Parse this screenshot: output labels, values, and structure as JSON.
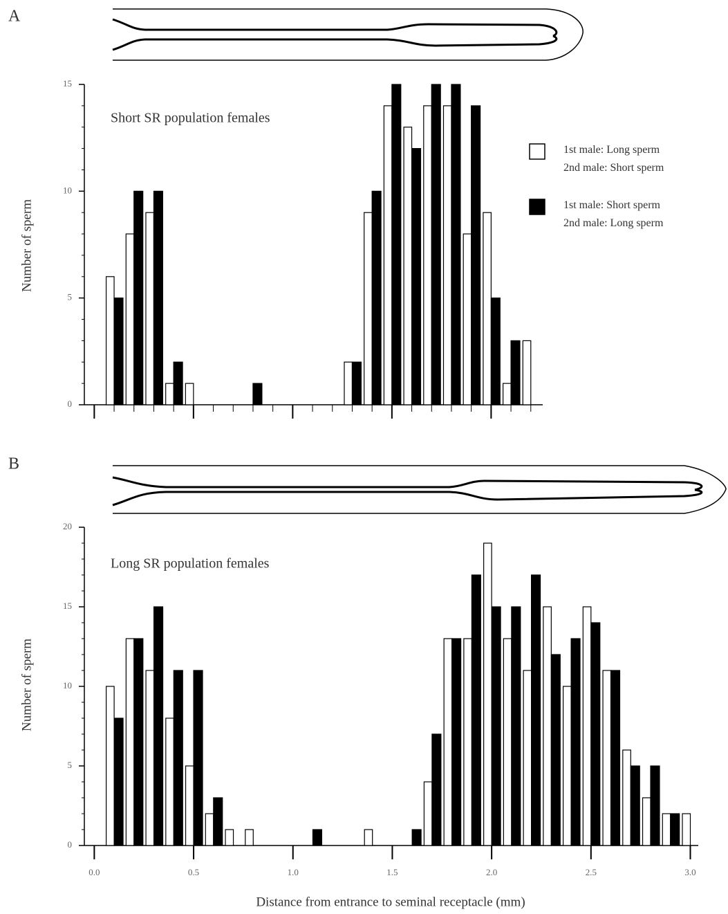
{
  "chart_data": [
    {
      "type": "bar",
      "panel": "A",
      "subtitle": "Short SR population females",
      "ylabel": "Number of sperm",
      "x": [
        0.1,
        0.2,
        0.3,
        0.4,
        0.5,
        0.6,
        0.7,
        0.8,
        0.9,
        1.0,
        1.1,
        1.2,
        1.3,
        1.4,
        1.5,
        1.6,
        1.7,
        1.8,
        1.9,
        2.0,
        2.1,
        2.2
      ],
      "series": [
        {
          "name": "1st male:  Long sperm\n2nd male: Short sperm",
          "color": "#ffffff",
          "values": [
            6,
            8,
            9,
            1,
            1,
            0,
            0,
            0,
            0,
            0,
            0,
            0,
            2,
            9,
            14,
            13,
            14,
            14,
            8,
            9,
            1,
            3
          ]
        },
        {
          "name": "1st male:  Short sperm\n2nd male: Long sperm",
          "color": "#000000",
          "values": [
            5,
            10,
            10,
            2,
            0,
            0,
            0,
            1,
            0,
            0,
            0,
            0,
            2,
            10,
            15,
            12,
            15,
            15,
            14,
            5,
            3,
            0
          ]
        }
      ],
      "xlim": [
        -0.05,
        2.26
      ],
      "xticks": [
        0,
        0.5,
        1.0,
        1.5,
        2.0
      ],
      "x_tick_labels": false,
      "x_minor_step": 0.1,
      "ylim": [
        0,
        15
      ],
      "yticks": [
        0,
        5,
        10,
        15
      ],
      "y_minor_step": 1,
      "legend": "upper right"
    },
    {
      "type": "bar",
      "panel": "B",
      "subtitle": "Long SR population females",
      "ylabel": "Number of sperm",
      "xlabel": "Distance from entrance to seminal receptacle (mm)",
      "x": [
        0.1,
        0.2,
        0.3,
        0.4,
        0.5,
        0.6,
        0.7,
        0.8,
        0.9,
        1.0,
        1.1,
        1.2,
        1.3,
        1.4,
        1.5,
        1.6,
        1.7,
        1.8,
        1.9,
        2.0,
        2.1,
        2.2,
        2.3,
        2.4,
        2.5,
        2.6,
        2.7,
        2.8,
        2.9,
        3.0
      ],
      "series": [
        {
          "color": "#ffffff",
          "values": [
            10,
            13,
            11,
            8,
            5,
            2,
            1,
            1,
            0,
            0,
            0,
            0,
            0,
            1,
            0,
            0,
            4,
            13,
            13,
            19,
            13,
            11,
            15,
            10,
            15,
            11,
            6,
            3,
            2,
            2
          ]
        },
        {
          "color": "#000000",
          "values": [
            8,
            13,
            15,
            11,
            11,
            3,
            0,
            0,
            0,
            0,
            1,
            0,
            0,
            0,
            0,
            1,
            7,
            13,
            17,
            15,
            15,
            17,
            12,
            13,
            14,
            11,
            5,
            5,
            2,
            0
          ]
        }
      ],
      "xlim": [
        -0.05,
        3.04
      ],
      "xticks": [
        {
          "value": 0,
          "label": "0.0"
        },
        {
          "value": 0.5,
          "label": "0.5"
        },
        {
          "value": 1.0,
          "label": "1.0"
        },
        {
          "value": 1.5,
          "label": "1.5"
        },
        {
          "value": 2.0,
          "label": "2.0"
        },
        {
          "value": 2.5,
          "label": "2.5"
        },
        {
          "value": 3.0,
          "label": "3.0"
        }
      ],
      "x_tick_labels": true,
      "ylim": [
        0,
        20
      ],
      "yticks": [
        0,
        5,
        10,
        15,
        20
      ],
      "y_minor_step": 1
    }
  ]
}
